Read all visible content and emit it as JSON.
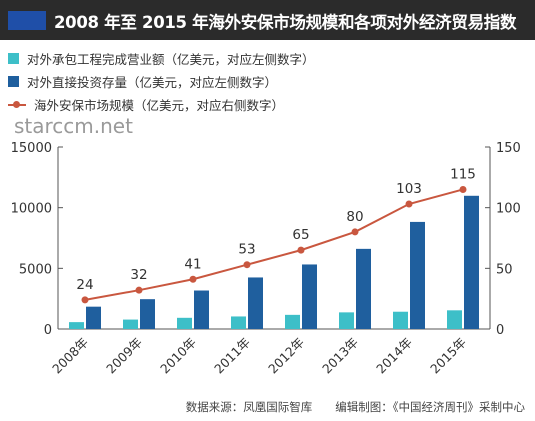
{
  "title": "2008 年至 2015 年海外安保市场规模和各项对外经济贸易指数",
  "legend": [
    {
      "label": "对外承包工程完成营业额（亿美元，对应左侧数字）",
      "color": "#3dbfc8"
    },
    {
      "label": "对外直接投资存量（亿美元，对应左侧数字）",
      "color": "#1f5f9e"
    },
    {
      "label": "海外安保市场规模（亿美元，对应右侧数字）",
      "color": "#c9573f"
    }
  ],
  "watermark": "starccm.net",
  "source": "数据来源：凤凰国际智库　　编辑制图：《中国经济周刊》采制中心",
  "chart_data": {
    "type": "bar",
    "categories": [
      "2008年",
      "2009年",
      "2010年",
      "2011年",
      "2012年",
      "2013年",
      "2014年",
      "2015年"
    ],
    "series": [
      {
        "name": "对外承包工程完成营业额（亿美元，对应左侧数字）",
        "type": "bar",
        "axis": "left",
        "values": [
          566,
          777,
          922,
          1034,
          1166,
          1371,
          1424,
          1540
        ],
        "color": "#3dbfc8"
      },
      {
        "name": "对外直接投资存量（亿美元，对应左侧数字）",
        "type": "bar",
        "axis": "left",
        "values": [
          1840,
          2458,
          3172,
          4248,
          5319,
          6605,
          8826,
          10979
        ],
        "color": "#1f5f9e"
      },
      {
        "name": "海外安保市场规模（亿美元，对应右侧数字）",
        "type": "line",
        "axis": "right",
        "values": [
          24,
          32,
          41,
          53,
          65,
          80,
          103,
          115
        ],
        "labels": [
          "24",
          "32",
          "41",
          "53",
          "65",
          "80",
          "103",
          "115"
        ],
        "color": "#c9573f"
      }
    ],
    "y_left": {
      "ylim": [
        0,
        15000
      ],
      "ticks": [
        0,
        5000,
        10000,
        15000
      ],
      "tick_labels": [
        "0",
        "5000",
        "10000",
        "15000"
      ]
    },
    "y_right": {
      "ylim": [
        0,
        150
      ],
      "ticks": [
        0,
        50,
        100,
        150
      ],
      "tick_labels": [
        "0",
        "50",
        "100",
        "150"
      ]
    },
    "grid": false
  }
}
